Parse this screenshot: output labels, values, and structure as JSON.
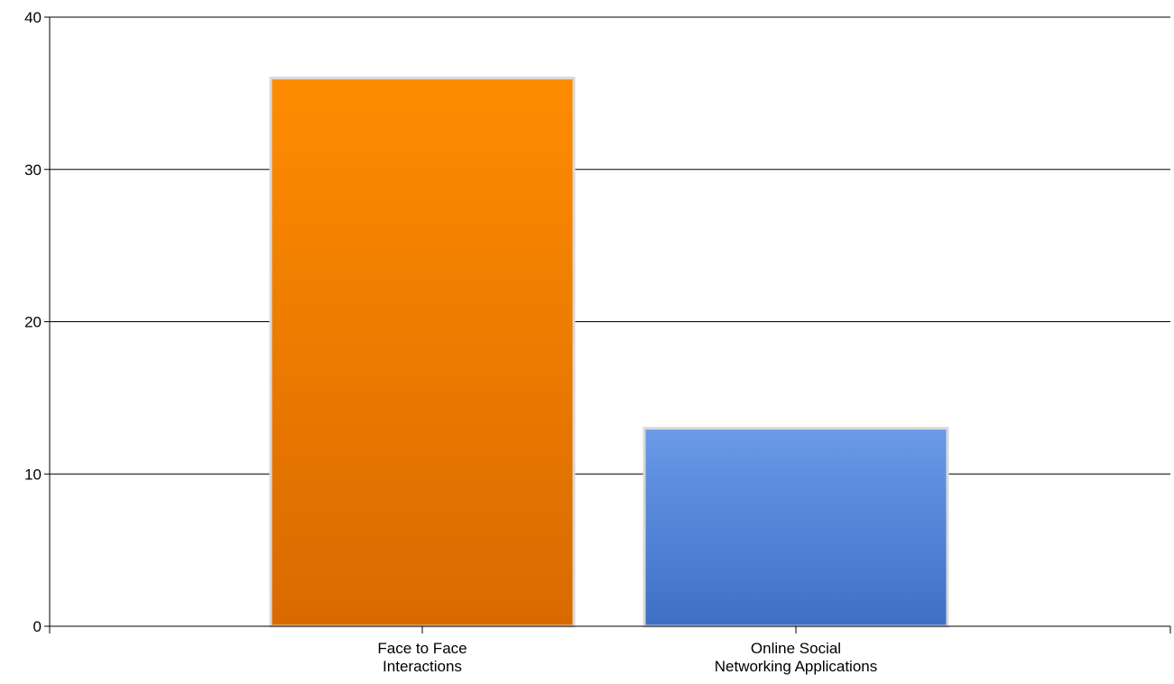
{
  "chart_data": {
    "type": "bar",
    "title": "",
    "xlabel": "",
    "ylabel": "",
    "categories": [
      [
        "Face to Face",
        "Interactions"
      ],
      [
        "Online Social",
        "Networking Applications"
      ]
    ],
    "values": [
      36,
      13
    ],
    "ylim": [
      0,
      40
    ],
    "yticks": [
      0,
      10,
      20,
      30,
      40
    ],
    "ytick_labels": [
      "0",
      "10",
      "20",
      "30",
      "40"
    ],
    "grid": true,
    "legend": "none",
    "bar_colors": [
      {
        "top": "#ff8c00",
        "bottom": "#d96a00"
      },
      {
        "top": "#6a9ae8",
        "bottom": "#3d6fc6"
      }
    ],
    "bar_border_color": "#d9d9d9",
    "axis_color": "#000000"
  }
}
